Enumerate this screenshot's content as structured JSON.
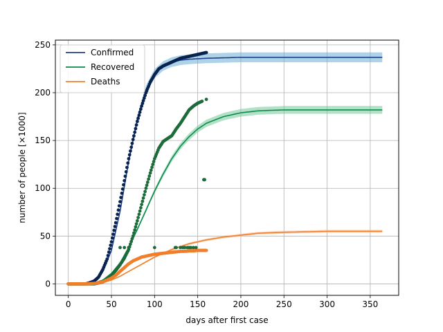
{
  "chart_data": {
    "type": "line",
    "title": "",
    "xlabel": "days after first case",
    "ylabel": "number of people [×1000]",
    "xlim": [
      -15,
      383
    ],
    "ylim": [
      -12,
      255
    ],
    "x_ticks": [
      0,
      50,
      100,
      150,
      200,
      250,
      300,
      350
    ],
    "y_ticks": [
      0,
      50,
      100,
      150,
      200,
      250
    ],
    "grid": true,
    "legend_position": "top-left",
    "series": [
      {
        "name": "Confirmed",
        "kind": "fit_line_with_observed_points",
        "line_color": "#1f3f8c",
        "band_color": "#6baed6",
        "point_color": "#08234f",
        "fit_x": [
          0,
          10,
          20,
          30,
          40,
          50,
          60,
          70,
          80,
          90,
          100,
          110,
          120,
          130,
          140,
          150,
          160,
          180,
          200,
          250,
          300,
          365
        ],
        "fit_y": [
          0.1,
          0.3,
          1.0,
          4,
          13,
          35,
          76,
          128,
          172,
          203,
          220,
          228,
          232,
          234,
          235,
          235.5,
          236,
          236.5,
          237,
          237,
          237,
          237
        ],
        "observed_x": [
          0,
          10,
          20,
          25,
          30,
          35,
          40,
          45,
          50,
          55,
          60,
          65,
          70,
          75,
          80,
          85,
          90,
          95,
          100,
          105,
          110,
          115,
          120,
          125,
          130,
          135,
          140,
          145,
          150,
          155,
          160
        ],
        "observed_y": [
          0,
          0,
          0,
          1,
          3,
          7,
          15,
          26,
          44,
          64,
          86,
          108,
          131,
          151,
          170,
          186,
          200,
          211,
          219,
          225,
          228,
          230,
          232,
          234,
          236,
          237,
          238,
          239,
          240,
          241,
          242
        ]
      },
      {
        "name": "Recovered",
        "kind": "fit_line_with_observed_points",
        "line_color": "#0a8a4a",
        "band_color": "#74c99b",
        "point_color": "#1d6b3a",
        "fit_x": [
          0,
          20,
          30,
          40,
          50,
          60,
          70,
          80,
          90,
          100,
          110,
          120,
          130,
          140,
          150,
          160,
          180,
          200,
          220,
          250,
          300,
          365
        ],
        "fit_y": [
          0,
          0.2,
          1,
          4,
          11,
          22,
          38,
          57,
          77,
          97,
          115,
          131,
          144,
          154,
          162,
          168,
          175,
          179,
          181,
          182,
          182,
          182
        ],
        "observed_x": [
          0,
          20,
          30,
          40,
          45,
          50,
          55,
          60,
          65,
          70,
          75,
          80,
          85,
          90,
          95,
          100,
          105,
          110,
          115,
          120,
          125,
          130,
          135,
          140,
          145,
          150,
          155,
          157,
          158,
          160
        ],
        "observed_y": [
          0,
          0,
          0,
          2,
          5,
          9,
          14,
          20,
          27,
          36,
          50,
          66,
          83,
          100,
          116,
          131,
          142,
          149,
          152,
          155,
          162,
          168,
          175,
          182,
          186,
          189,
          191,
          109,
          109,
          193
        ]
      },
      {
        "name": "Deaths",
        "kind": "fit_line_with_observed_points",
        "line_color": "#f07f2b",
        "band_color": "#f9b98a",
        "point_color": "#f07f2b",
        "fit_x": [
          0,
          20,
          30,
          40,
          50,
          60,
          70,
          80,
          90,
          100,
          110,
          120,
          130,
          140,
          150,
          160,
          180,
          200,
          220,
          250,
          300,
          365
        ],
        "fit_y": [
          0,
          0.1,
          0.4,
          1.5,
          4,
          8,
          13,
          18,
          23,
          28,
          32,
          36,
          39,
          42,
          44,
          46,
          49,
          51,
          53,
          54,
          55,
          55
        ],
        "observed_x": [
          0,
          20,
          30,
          40,
          45,
          50,
          55,
          60,
          65,
          70,
          75,
          80,
          85,
          90,
          95,
          100,
          105,
          110,
          115,
          120,
          125,
          130,
          135,
          140,
          145,
          150,
          155,
          160
        ],
        "observed_y": [
          0,
          0,
          0.5,
          2,
          4,
          6,
          9,
          13,
          17,
          21,
          24,
          26,
          28,
          29,
          30,
          31,
          31.5,
          32,
          32.5,
          33,
          33.5,
          34,
          34,
          34.5,
          34.5,
          35,
          35,
          35
        ]
      },
      {
        "name": "",
        "kind": "scatter_outliers",
        "point_color": "#1d6b3a",
        "observed_x": [
          60,
          65,
          70,
          100,
          124,
          125,
          130,
          133,
          135,
          138,
          140,
          142,
          145,
          148
        ],
        "observed_y": [
          38,
          38,
          38,
          38,
          38,
          38,
          38,
          38,
          38,
          38,
          38,
          38,
          38,
          38
        ]
      }
    ]
  }
}
